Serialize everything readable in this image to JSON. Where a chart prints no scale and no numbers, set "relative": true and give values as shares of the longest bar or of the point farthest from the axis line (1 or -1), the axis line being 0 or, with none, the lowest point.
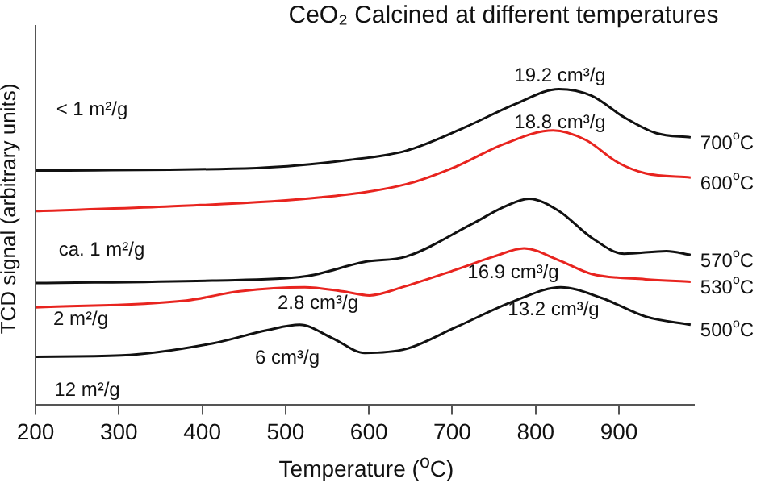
{
  "chart_data": {
    "type": "line",
    "title": "CeO₂ Calcined at different temperatures",
    "xlabel": "Temperature ($^{o}$C)",
    "ylabel": "TCD signal (arbitrary units)",
    "relative": true,
    "xlim": [
      200,
      990
    ],
    "xticks": [
      200,
      300,
      400,
      500,
      600,
      700,
      800,
      900
    ],
    "grid": false,
    "legend": false,
    "marker": "none",
    "line_style": "solid",
    "series": [
      {
        "name": "700$^{o}$C",
        "color": "#111111",
        "x": [
          200,
          465,
          575,
          645,
          717,
          776,
          828,
          867,
          906,
          945,
          986
        ],
        "values": [
          0.742,
          0.75,
          0.775,
          0.805,
          0.881,
          0.953,
          1.0,
          0.979,
          0.911,
          0.86,
          0.847
        ]
      },
      {
        "name": "600$^{o}$C",
        "color": "#e8241f",
        "x": [
          200,
          348,
          542,
          645,
          704,
          762,
          821,
          860,
          899,
          932,
          986
        ],
        "values": [
          0.614,
          0.627,
          0.657,
          0.699,
          0.754,
          0.826,
          0.869,
          0.839,
          0.767,
          0.733,
          0.72
        ]
      },
      {
        "name": "570$^{o}$C",
        "color": "#111111",
        "x": [
          200,
          412,
          523,
          595,
          645,
          723,
          762,
          792,
          828,
          867,
          906,
          957,
          986
        ],
        "values": [
          0.386,
          0.394,
          0.407,
          0.453,
          0.47,
          0.572,
          0.627,
          0.653,
          0.614,
          0.53,
          0.479,
          0.487,
          0.475
        ]
      },
      {
        "name": "530$^{o}$C",
        "color": "#e8241f",
        "x": [
          200,
          381,
          445,
          523,
          568,
          601,
          640,
          704,
          750,
          786,
          828,
          867,
          932,
          986
        ],
        "values": [
          0.309,
          0.331,
          0.36,
          0.373,
          0.36,
          0.347,
          0.373,
          0.428,
          0.47,
          0.496,
          0.458,
          0.415,
          0.398,
          0.39
        ]
      },
      {
        "name": "500$^{o}$C",
        "color": "#111111",
        "x": [
          200,
          303,
          412,
          478,
          517,
          556,
          595,
          645,
          704,
          776,
          830,
          879,
          932,
          986
        ],
        "values": [
          0.153,
          0.157,
          0.195,
          0.237,
          0.254,
          0.212,
          0.165,
          0.178,
          0.246,
          0.331,
          0.373,
          0.339,
          0.28,
          0.254
        ]
      }
    ],
    "annotations": [
      "19.2 cm³/g",
      "18.8 cm³/g",
      "16.9 cm³/g",
      "2.8 cm³/g",
      "13.2 cm³/g",
      "6 cm³/g",
      "< 1 m²/g",
      "ca. 1 m²/g",
      "2 m²/g",
      "12 m²/g"
    ]
  }
}
